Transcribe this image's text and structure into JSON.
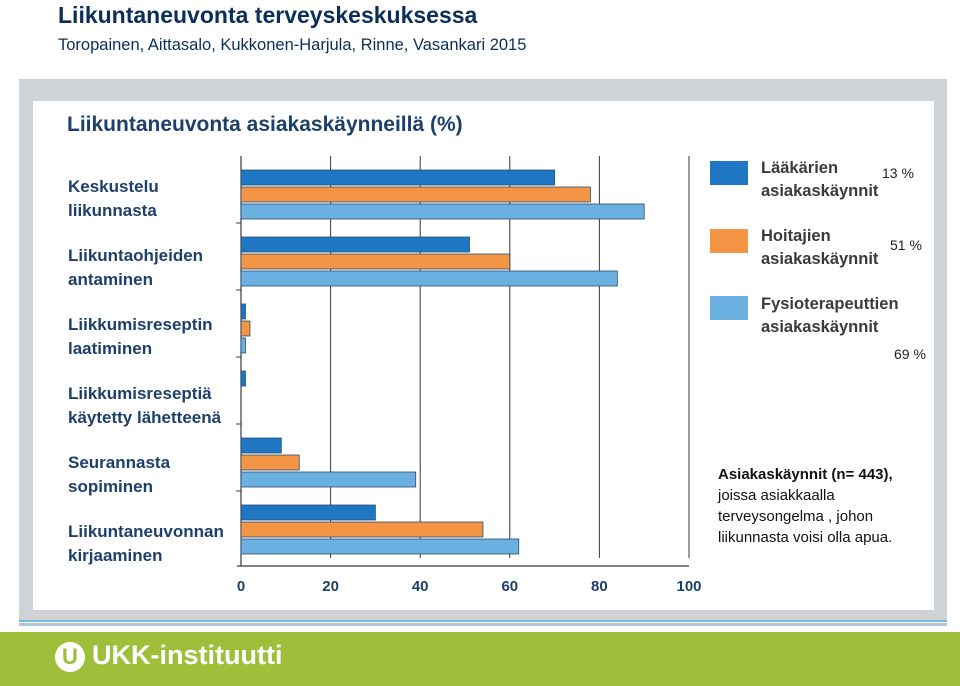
{
  "slide": {
    "title": "Liikuntaneuvonta terveyskeskuksessa",
    "subtitle": "Toropainen, Aittasalo, Kukkonen-Harjula, Rinne, Vasankari 2015"
  },
  "chart_data": {
    "type": "bar",
    "orientation": "horizontal",
    "title": "Liikuntaneuvonta asiakaskäynneillä (%)",
    "categories": [
      [
        "Keskustelu",
        "liikunnasta"
      ],
      [
        "Liikuntaohjeiden",
        "antaminen"
      ],
      [
        "Liikkumisreseptin",
        "laatiminen"
      ],
      [
        "Liikkumisreseptiä",
        "käytetty lähetteenä"
      ],
      [
        "Seurannasta",
        "sopiminen"
      ],
      [
        "Liikuntaneuvonnan",
        "kirjaaminen"
      ]
    ],
    "series": [
      {
        "name": [
          "Lääkärien",
          "asiakaskäynnit"
        ],
        "share": "13 %",
        "color": "#1f77c4",
        "values": [
          70,
          51,
          1,
          1,
          9,
          30
        ]
      },
      {
        "name": [
          "Hoitajien",
          "asiakaskäynnit"
        ],
        "share": "51 %",
        "color": "#f39545",
        "values": [
          78,
          60,
          2,
          null,
          13,
          54
        ]
      },
      {
        "name": [
          "Fysioterapeuttien",
          "asiakaskäynnit"
        ],
        "share": "69 %",
        "color": "#6ab0e0",
        "values": [
          90,
          84,
          1,
          null,
          39,
          62
        ]
      }
    ],
    "x_ticks": [
      0,
      20,
      40,
      60,
      80,
      100
    ],
    "xlim": [
      0,
      100
    ],
    "grid": true,
    "legend_position": "right"
  },
  "note": {
    "line1": "Asiakaskäynnit (n= 443),",
    "line2": "joissa asiakkaalla",
    "line3": "terveysongelma , johon",
    "line4": "liikunnasta voisi olla apua."
  },
  "footer": {
    "logo_letter": "U",
    "logo_text": "UKK-instituutti",
    "bg_color": "#9fbf3b"
  }
}
